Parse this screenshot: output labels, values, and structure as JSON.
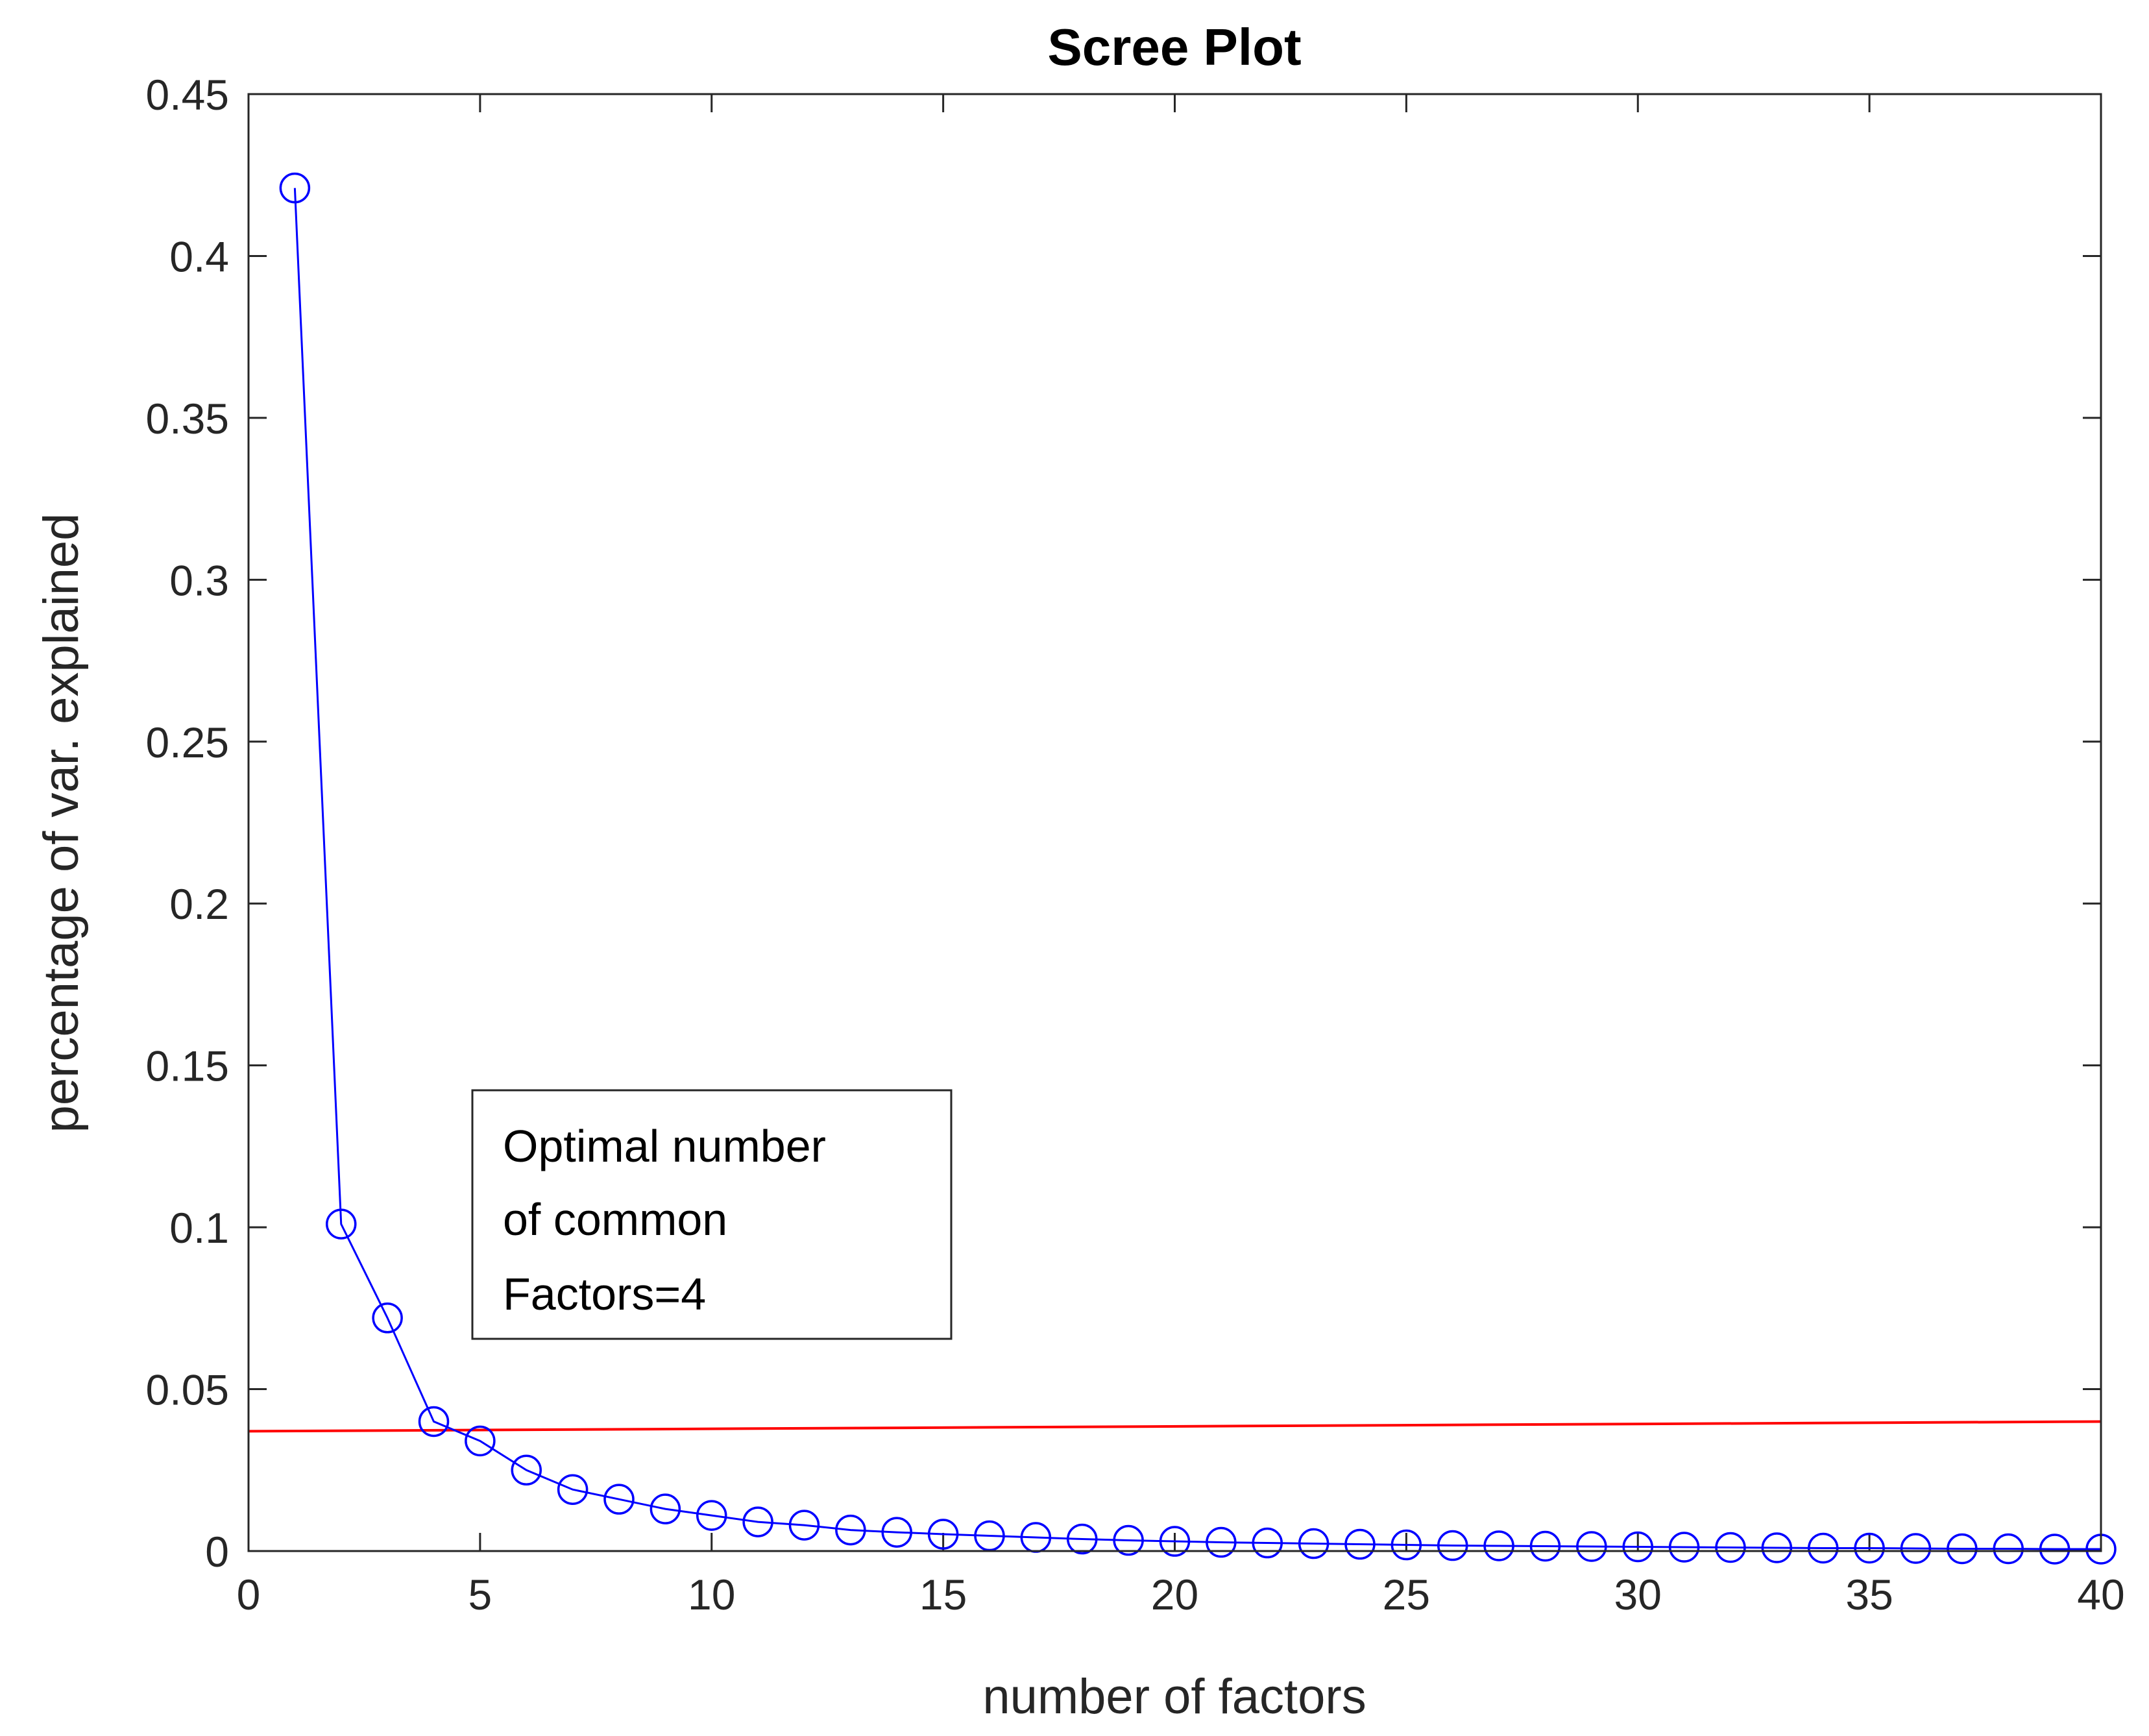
{
  "chart_data": {
    "type": "line",
    "title": "Scree Plot",
    "xlabel": "number of factors",
    "ylabel": "percentage of var. explained",
    "xlim": [
      0,
      40
    ],
    "ylim": [
      0,
      0.45
    ],
    "xticks": [
      "0",
      "5",
      "10",
      "15",
      "20",
      "25",
      "30",
      "35",
      "40"
    ],
    "yticks": [
      "0",
      "0.05",
      "0.1",
      "0.15",
      "0.2",
      "0.25",
      "0.3",
      "0.35",
      "0.4",
      "0.45"
    ],
    "grid": false,
    "series": [
      {
        "marker": "circle",
        "color": "#0000ff",
        "x": [
          1,
          2,
          3,
          4,
          5,
          6,
          7,
          8,
          9,
          10,
          11,
          12,
          13,
          14,
          15,
          16,
          17,
          18,
          19,
          20,
          21,
          22,
          23,
          24,
          25,
          26,
          27,
          28,
          29,
          30,
          31,
          32,
          33,
          34,
          35,
          36,
          37,
          38,
          39,
          40
        ],
        "y": [
          0.421,
          0.101,
          0.072,
          0.04,
          0.034,
          0.025,
          0.019,
          0.016,
          0.013,
          0.011,
          0.009,
          0.008,
          0.0065,
          0.0058,
          0.0052,
          0.0047,
          0.0042,
          0.0037,
          0.0033,
          0.003,
          0.0027,
          0.0025,
          0.0023,
          0.0021,
          0.0019,
          0.0017,
          0.0016,
          0.0015,
          0.0014,
          0.0013,
          0.0012,
          0.0011,
          0.001,
          0.0009,
          0.0009,
          0.0008,
          0.0007,
          0.0007,
          0.0006,
          0.0006
        ]
      }
    ],
    "threshold_line": {
      "color": "#ff0000",
      "x": [
        0,
        40
      ],
      "y": [
        0.037,
        0.04
      ]
    },
    "annotation": {
      "lines": [
        "Optimal number",
        "of common",
        "Factors=4"
      ]
    }
  }
}
